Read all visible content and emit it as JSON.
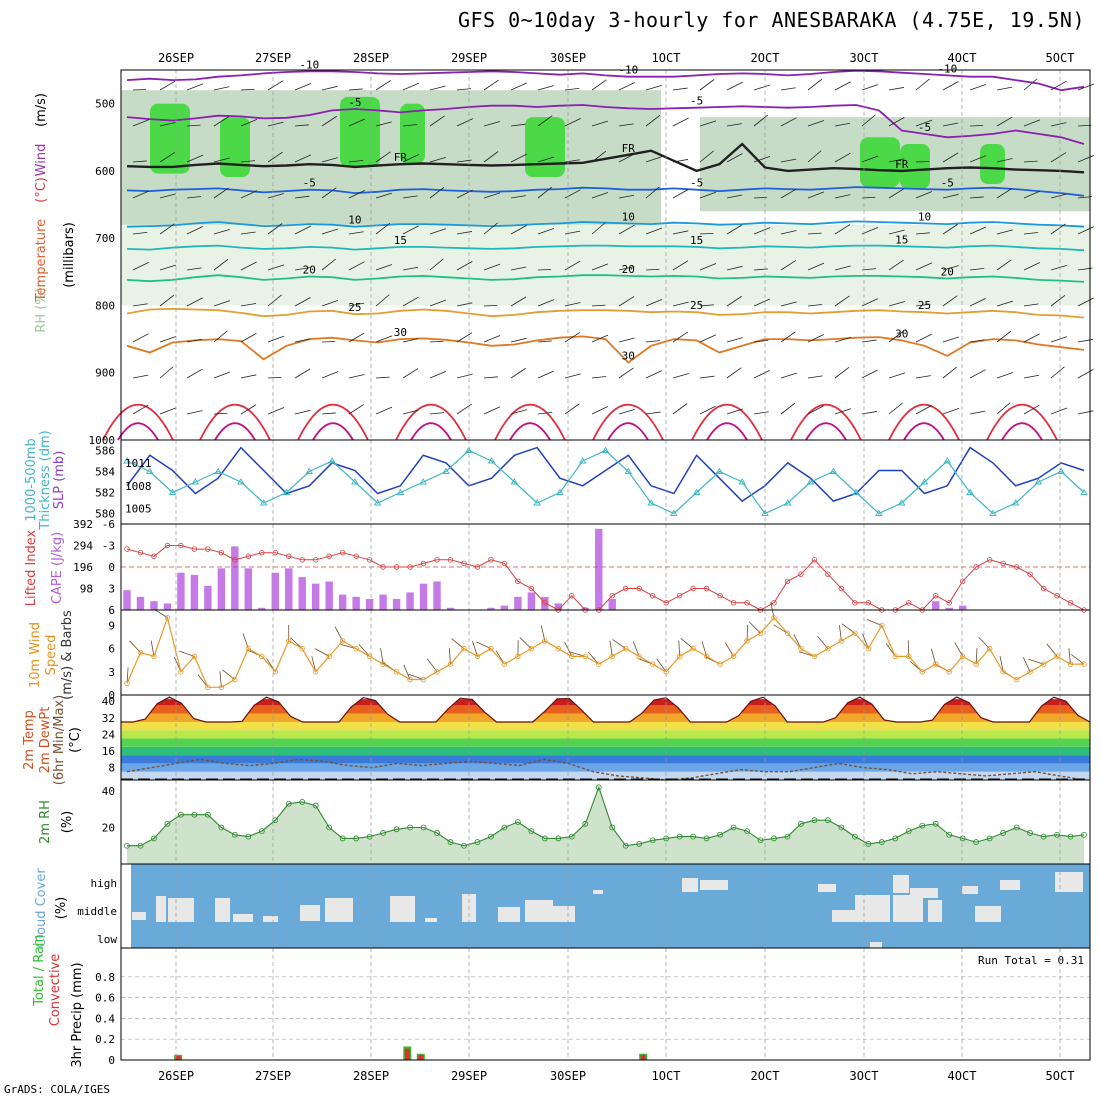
{
  "title": "GFS 0~10day 3-hourly for ANESBARAKA (4.75E, 19.5N)",
  "footer": "GrADS: COLA/IGES",
  "colors": {
    "rh_light": "#e8f3e6",
    "rh_mid": "#c7dcc7",
    "rh_dark": "#9ec89b",
    "rh_green": "#3ed83a",
    "slp": "#1f3fbf",
    "thick": "#3fb7c4",
    "lifted": "#d84040",
    "cape": "#c57ae8",
    "wind_speed": "#e89a2a",
    "barb": "#6b4a2a",
    "rh2m_line": "#2e8b2e",
    "rh2m_fill": "#cfe3cc",
    "cloud_bg": "#6aaad8",
    "cloud_fg": "#e8e8e8",
    "precip_total": "#2ebd2e",
    "precip_conv": "#e03030"
  },
  "chart_data": {
    "type": "meteogram",
    "x_dates": [
      "26SEP",
      "27SEP",
      "28SEP",
      "29SEP",
      "30SEP",
      "1OCT",
      "2OCT",
      "3OCT",
      "4OCT",
      "5OCT"
    ],
    "panels": [
      {
        "id": "upper",
        "ylabel_parts": [
          "RH (%)",
          "Temperature",
          "(°C)",
          "Wind",
          "(m/s)",
          "(millibars)"
        ],
        "yticks": [
          "500",
          "600",
          "700",
          "800",
          "900",
          "1000"
        ],
        "ylim": [
          450,
          1000
        ],
        "contours": [
          {
            "label": "-10",
            "color": "#8a1fb0",
            "p": [
              465,
              463,
              465,
              464,
              460,
              458,
              455,
              453,
              452,
              452,
              453,
              455,
              456,
              455,
              454,
              453,
              452,
              453,
              455,
              457,
              455,
              458,
              460,
              460,
              460,
              458,
              456,
              455,
              456,
              458,
              456,
              453,
              451,
              452,
              454,
              456,
              458,
              460,
              460,
              465,
              470,
              480,
              475
            ]
          },
          {
            "label": "-5",
            "color": "#8a1fb0",
            "p": [
              520,
              523,
              525,
              522,
              518,
              519,
              522,
              521,
              517,
              510,
              508,
              510,
              513,
              510,
              508,
              505,
              503,
              503,
              505,
              503,
              502,
              505,
              507,
              508,
              507,
              506,
              505,
              504,
              505,
              506,
              505,
              503,
              502,
              510,
              540,
              545,
              550,
              548,
              545,
              540,
              545,
              550,
              560
            ]
          },
          {
            "label": "FR",
            "color": "#202020",
            "p": [
              593,
              594,
              594,
              591,
              589,
              591,
              593,
              592,
              590,
              591,
              594,
              592,
              590,
              589,
              590,
              591,
              592,
              591,
              590,
              589,
              588,
              582,
              576,
              570,
              585,
              600,
              590,
              560,
              595,
              600,
              598,
              596,
              597,
              599,
              600,
              598,
              596,
              595,
              596,
              598,
              599,
              600,
              602
            ]
          },
          {
            "label": "-5",
            "color": "#1f5fd8",
            "p": [
              629,
              630,
              628,
              627,
              626,
              629,
              632,
              630,
              628,
              629,
              633,
              631,
              628,
              627,
              629,
              630,
              631,
              630,
              628,
              627,
              625,
              626,
              628,
              628,
              626,
              628,
              630,
              628,
              626,
              627,
              628,
              626,
              624,
              625,
              626,
              627,
              628,
              626,
              625,
              627,
              630,
              633,
              637
            ]
          },
          {
            "label": "10",
            "color": "#1a9ad8",
            "p": [
              683,
              682,
              681,
              678,
              676,
              679,
              682,
              681,
              679,
              680,
              683,
              681,
              679,
              679,
              680,
              681,
              682,
              681,
              679,
              678,
              676,
              677,
              678,
              679,
              677,
              678,
              680,
              679,
              677,
              678,
              679,
              677,
              675,
              676,
              677,
              678,
              679,
              677,
              676,
              678,
              680,
              681,
              683
            ]
          },
          {
            "label": "15",
            "color": "#1fb8b8",
            "p": [
              716,
              717,
              714,
              712,
              711,
              714,
              716,
              715,
              713,
              714,
              717,
              715,
              713,
              713,
              714,
              715,
              716,
              715,
              713,
              712,
              711,
              711,
              712,
              712,
              712,
              713,
              715,
              714,
              712,
              713,
              714,
              712,
              711,
              711,
              712,
              713,
              714,
              712,
              711,
              713,
              715,
              716,
              718
            ]
          },
          {
            "label": "20",
            "color": "#1fbf86",
            "p": [
              762,
              764,
              762,
              758,
              755,
              758,
              762,
              760,
              757,
              758,
              762,
              760,
              757,
              756,
              758,
              760,
              762,
              761,
              758,
              757,
              755,
              755,
              756,
              757,
              756,
              757,
              760,
              759,
              757,
              758,
              759,
              757,
              756,
              756,
              757,
              758,
              760,
              758,
              757,
              759,
              762,
              763,
              765
            ]
          },
          {
            "label": "25",
            "color": "#e0a030",
            "p": [
              812,
              806,
              805,
              806,
              807,
              811,
              816,
              814,
              809,
              808,
              813,
              812,
              808,
              806,
              808,
              812,
              816,
              814,
              810,
              808,
              807,
              807,
              808,
              810,
              809,
              810,
              814,
              813,
              810,
              810,
              812,
              810,
              808,
              807,
              809,
              810,
              812,
              810,
              808,
              810,
              814,
              815,
              818
            ]
          },
          {
            "label": "30",
            "color": "#e07820",
            "p": [
              860,
              870,
              855,
              852,
              850,
              853,
              880,
              860,
              850,
              848,
              852,
              855,
              850,
              849,
              851,
              855,
              860,
              858,
              852,
              848,
              846,
              850,
              885,
              860,
              850,
              852,
              870,
              860,
              850,
              850,
              852,
              850,
              848,
              847,
              852,
              860,
              875,
              855,
              850,
              852,
              858,
              862,
              866
            ]
          }
        ]
      },
      {
        "id": "slp",
        "ylabel_parts": [
          "1000-500mb",
          "Thickness (dm)",
          "SLP (mb)"
        ],
        "yticks_left": [
          "580",
          "582",
          "584",
          "586"
        ],
        "yticks_right": [
          "1005",
          "1008",
          "1011"
        ],
        "slp": [
          1008,
          1012,
          1010,
          1007,
          1009,
          1013,
          1010,
          1007,
          1008,
          1011,
          1010,
          1007,
          1008,
          1012,
          1011,
          1008,
          1009,
          1012,
          1013,
          1009,
          1008,
          1010,
          1012,
          1008,
          1007,
          1012,
          1009,
          1006,
          1008,
          1011,
          1009,
          1006,
          1007,
          1010,
          1010,
          1007,
          1008,
          1013,
          1011,
          1008,
          1009,
          1011,
          1010
        ],
        "thickness": [
          585,
          584,
          582,
          583,
          584,
          583,
          581,
          582,
          584,
          585,
          583,
          581,
          582,
          583,
          584,
          586,
          585,
          583,
          581,
          582,
          585,
          586,
          584,
          581,
          580,
          582,
          584,
          583,
          580,
          581,
          583,
          584,
          582,
          580,
          581,
          583,
          585,
          582,
          580,
          581,
          583,
          584,
          582
        ]
      },
      {
        "id": "cape",
        "ylabel_parts": [
          "Lifted Index",
          "CAPE (J/kg)"
        ],
        "yticks_left": [
          "-6",
          "-3",
          "0",
          "3",
          "6"
        ],
        "yticks_right": [
          "98",
          "196",
          "294",
          "392"
        ],
        "lifted_index": [
          -2.5,
          -2,
          -1.5,
          -3,
          -3,
          -2.5,
          -2.5,
          -2,
          -1,
          -1.5,
          -2,
          -2,
          -1.5,
          -1,
          -1,
          -1.5,
          -2,
          -1.5,
          -1,
          0,
          0,
          0,
          -0.5,
          -1,
          -1,
          -0.5,
          0,
          -1,
          -0.5,
          2,
          3,
          5,
          6,
          4,
          6,
          6,
          4,
          3,
          3,
          4,
          5,
          4,
          3,
          3,
          4,
          5,
          5,
          6,
          5,
          2,
          1,
          -1,
          1,
          3,
          5,
          5,
          6,
          6,
          5,
          6,
          4,
          5,
          2,
          0,
          -1,
          -0.5,
          0,
          1,
          3,
          4,
          5,
          6
        ],
        "cape": [
          90,
          60,
          40,
          30,
          170,
          160,
          110,
          190,
          290,
          190,
          10,
          170,
          190,
          150,
          120,
          130,
          70,
          60,
          50,
          70,
          50,
          80,
          120,
          130,
          10,
          0,
          0,
          10,
          20,
          60,
          80,
          60,
          30,
          0,
          10,
          370,
          50,
          0,
          0,
          0,
          0,
          0,
          0,
          0,
          0,
          0,
          0,
          0,
          0,
          0,
          0,
          0,
          0,
          0,
          0,
          0,
          0,
          0,
          0,
          0,
          40,
          10,
          20,
          0,
          0,
          0,
          0,
          0,
          0,
          0,
          0,
          0
        ]
      },
      {
        "id": "wind10m",
        "ylabel_parts": [
          "10m Wind",
          "Speed",
          "(m/s) & Barbs"
        ],
        "yticks": [
          "0",
          "3",
          "6",
          "9"
        ],
        "speed": [
          1.5,
          5.5,
          5,
          10,
          3,
          5,
          1,
          1,
          2,
          6,
          5,
          3,
          7,
          6,
          3,
          5,
          7,
          6,
          5,
          4,
          3,
          2,
          2,
          3,
          4,
          6,
          5,
          6,
          4,
          5,
          6,
          7,
          6,
          5,
          5,
          4,
          5,
          6,
          5,
          4,
          3,
          5,
          6,
          5,
          4,
          5,
          7,
          8,
          10,
          8,
          6,
          5,
          6,
          7,
          8,
          6,
          9,
          5,
          5,
          3,
          4,
          3,
          5,
          4,
          6,
          3,
          2,
          3,
          4,
          5,
          4,
          4
        ]
      },
      {
        "id": "temp2m",
        "ylabel_parts": [
          "2m Temp",
          "2m DewPt",
          "(6hr Min/Max)",
          "(°C)"
        ],
        "yticks": [
          "8",
          "16",
          "24",
          "32",
          "40"
        ],
        "temp_min": 30,
        "temp_max": 42,
        "dewpoint": [
          6,
          8,
          10,
          12,
          10,
          9,
          10,
          12,
          11,
          9,
          8,
          10,
          9,
          10,
          11,
          10,
          9,
          12,
          10,
          6,
          4,
          3,
          2,
          3,
          5,
          7,
          6,
          6,
          8,
          10,
          8,
          7,
          5,
          6,
          5,
          4,
          5,
          6,
          4,
          2
        ]
      },
      {
        "id": "rh2m",
        "ylabel_parts": [
          "2m RH",
          "(%)"
        ],
        "yticks": [
          "20",
          "40"
        ],
        "rh": [
          10,
          10,
          14,
          22,
          27,
          27,
          27,
          20,
          16,
          15,
          18,
          24,
          33,
          34,
          32,
          20,
          14,
          14,
          15,
          17,
          19,
          20,
          20,
          17,
          12,
          10,
          12,
          15,
          20,
          23,
          18,
          14,
          14,
          15,
          22,
          42,
          20,
          10,
          11,
          13,
          14,
          15,
          15,
          14,
          16,
          20,
          18,
          13,
          14,
          15,
          22,
          24,
          24,
          20,
          15,
          11,
          12,
          14,
          18,
          21,
          22,
          16,
          14,
          12,
          14,
          17,
          20,
          17,
          15,
          16,
          15,
          16
        ]
      },
      {
        "id": "cloud",
        "ylabel_parts": [
          "Cloud Cover",
          "(%)"
        ],
        "yticks": [
          "high",
          "middle",
          "low"
        ]
      },
      {
        "id": "precip",
        "ylabel_parts": [
          "Total / Rain",
          "Convective",
          "3hr Precip (mm)"
        ],
        "yticks": [
          "0",
          "0.2",
          "0.4",
          "0.6",
          "0.8"
        ],
        "run_total": "Run Total = 0.31",
        "bars": [
          {
            "x": 3.5,
            "total": 0.05,
            "conv": 0.04
          },
          {
            "x": 20.5,
            "total": 0.13,
            "conv": 0.11
          },
          {
            "x": 21.5,
            "total": 0.06,
            "conv": 0.05
          },
          {
            "x": 38.0,
            "total": 0.06,
            "conv": 0.05
          }
        ]
      }
    ]
  }
}
